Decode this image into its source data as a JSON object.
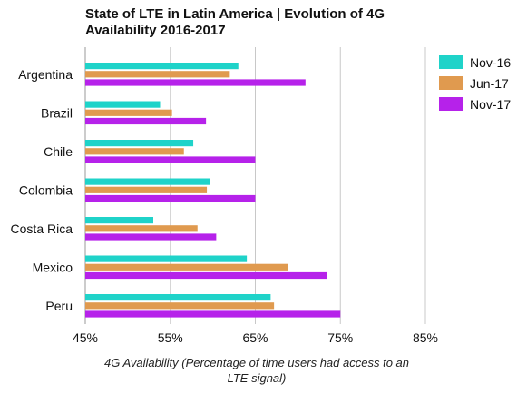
{
  "chart_data": {
    "type": "bar",
    "orientation": "horizontal",
    "title_lines": [
      "State of LTE in Latin America | Evolution of 4G",
      "Availability 2016-2017"
    ],
    "xlabel_lines": [
      "4G Availability (Percentage of time users had access to an",
      "LTE signal)"
    ],
    "ylabel": "",
    "xlim": [
      45,
      85
    ],
    "xticks": [
      45,
      55,
      65,
      75,
      85
    ],
    "xtick_labels": [
      "45%",
      "55%",
      "65%",
      "75%",
      "85%"
    ],
    "grid": "vertical",
    "legend_position": "top-right",
    "categories": [
      "Argentina",
      "Brazil",
      "Chile",
      "Colombia",
      "Costa Rica",
      "Mexico",
      "Peru"
    ],
    "series": [
      {
        "name": "Nov-16",
        "color": "#1fd3c9",
        "values": [
          63.0,
          53.8,
          57.7,
          59.7,
          53.0,
          64.0,
          66.8
        ]
      },
      {
        "name": "Jun-17",
        "color": "#e09a4f",
        "values": [
          62.0,
          55.2,
          56.6,
          59.3,
          58.2,
          68.8,
          67.2
        ]
      },
      {
        "name": "Nov-17",
        "color": "#b622ea",
        "values": [
          70.9,
          59.2,
          65.0,
          65.0,
          60.4,
          73.4,
          75.0
        ]
      }
    ]
  }
}
